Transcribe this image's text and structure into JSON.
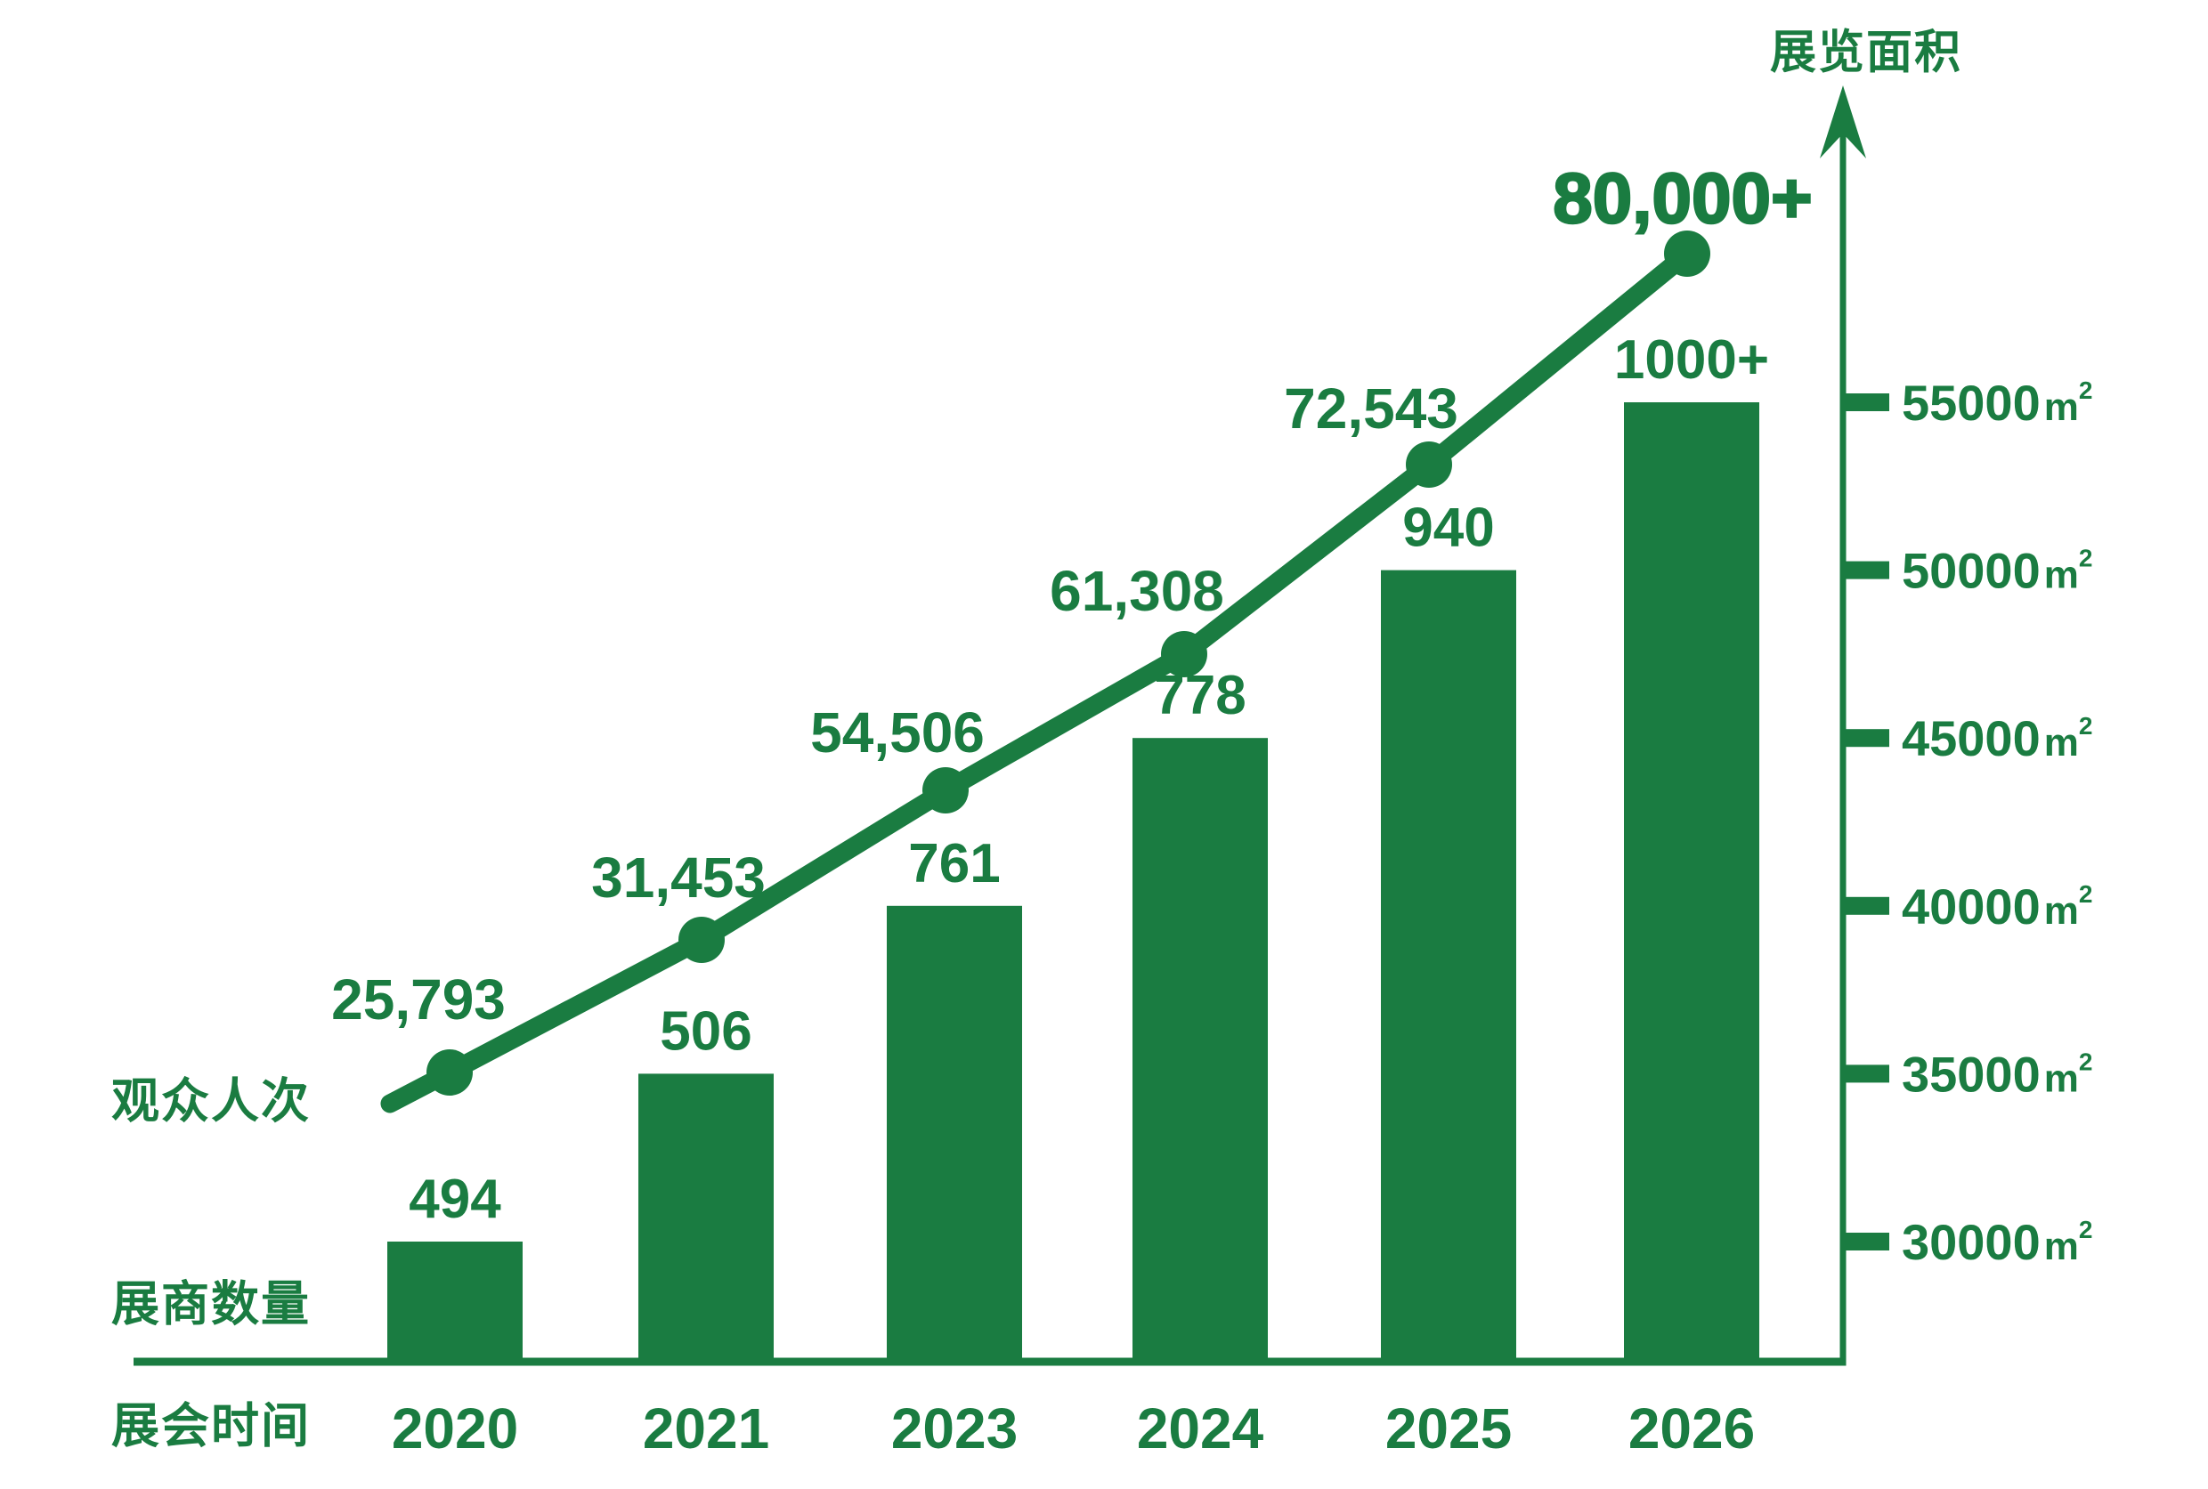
{
  "colors": {
    "green": "#1a7c41",
    "background": "#ffffff"
  },
  "labels": {
    "y_axis_title": "展览面积",
    "line_series": "观众人次",
    "bar_series": "展商数量",
    "x_axis_title": "展会时间"
  },
  "chart_data": {
    "type": "combo-bar-line",
    "title": "",
    "categories": [
      "2020",
      "2021",
      "2023",
      "2024",
      "2025",
      "2026"
    ],
    "x_axis_title": "展会时间",
    "right_axis": {
      "title": "展览面积",
      "unit_base": "m",
      "unit_sup": "2",
      "tick_labels": [
        "55000",
        "50000",
        "45000",
        "40000",
        "35000",
        "30000"
      ],
      "tick_values": [
        55000,
        50000,
        45000,
        40000,
        35000,
        30000
      ],
      "range": [
        30000,
        55000
      ]
    },
    "series": [
      {
        "name": "展览面积",
        "type": "bar",
        "unit": "m²",
        "values": [
          30000,
          35000,
          40000,
          45000,
          50000,
          55000
        ]
      },
      {
        "name": "展商数量",
        "type": "bar_top_label",
        "values": [
          "494",
          "506",
          "761",
          "778",
          "940",
          "1000+"
        ]
      },
      {
        "name": "观众人次",
        "type": "line",
        "values": [
          "25,793",
          "31,453",
          "54,506",
          "61,308",
          "72,543",
          "80,000+"
        ]
      }
    ],
    "grid": false,
    "legend_position": "series-name labels placed at chart left / top-right"
  }
}
